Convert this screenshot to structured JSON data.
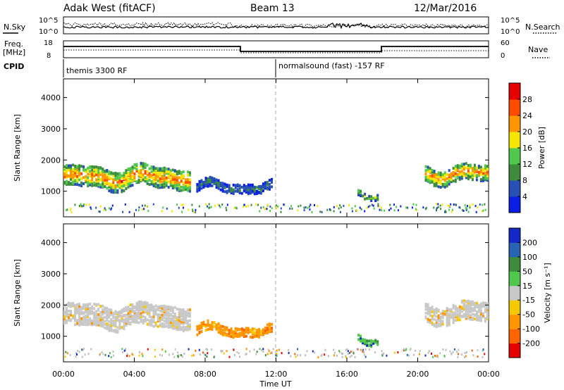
{
  "header": {
    "radar": "Adak West (fitACF)",
    "beam": "Beam 13",
    "date": "12/Mar/2016"
  },
  "summary": {
    "nsky_label": "N.Sky",
    "nsearch_label": "N.Search",
    "noise_ticks": [
      "10^5",
      "10^0"
    ],
    "freq_label_top": "Freq.",
    "freq_label_unit": "[MHz]",
    "freq_ticks": [
      "18",
      "8"
    ],
    "nave_label": "Nave",
    "nave_ticks": [
      "60",
      "0"
    ],
    "cpid_label": "CPID",
    "cpid_segments": [
      "themis 3300 RF",
      "normalsound (fast) -157 RF"
    ]
  },
  "colors": {
    "power": [
      "#0a1ee6",
      "#2850b4",
      "#3c8c3c",
      "#50c84b",
      "#f5e600",
      "#ff9600",
      "#ff4b00",
      "#e60000"
    ],
    "velocity": [
      "#e60000",
      "#ff6400",
      "#ff9600",
      "#f5c800",
      "#c8c8c8",
      "#50c84b",
      "#3c8c3c",
      "#2864b4",
      "#1428c8"
    ],
    "ground": "#a0a0a0",
    "ground_scatter": "#bebebe"
  },
  "chart_data": [
    {
      "type": "heatmap",
      "name": "power",
      "ylabel": "Slant Range [km]",
      "ylim": [
        180,
        4600
      ],
      "yticks": [
        1000,
        2000,
        3000,
        4000
      ],
      "xlim": [
        0,
        24
      ],
      "colorbar_label": "Power [dB]",
      "colorbar_ticks": [
        "4",
        "8",
        "12",
        "16",
        "20",
        "24",
        "28"
      ],
      "scatter_bands": [
        {
          "t0": 0.0,
          "t1": 7.2,
          "center": 1500,
          "width": 650,
          "level": 22
        },
        {
          "t0": 7.5,
          "t1": 11.8,
          "center": 1200,
          "width": 300,
          "level": 8
        },
        {
          "t0": 16.6,
          "t1": 17.8,
          "center": 1000,
          "width": 200,
          "level": 14
        },
        {
          "t0": 20.4,
          "t1": 24.0,
          "center": 1600,
          "width": 500,
          "level": 22
        }
      ]
    },
    {
      "type": "heatmap",
      "name": "velocity",
      "ylabel": "Slant Range [km]",
      "ylim": [
        180,
        4600
      ],
      "yticks": [
        1000,
        2000,
        3000,
        4000
      ],
      "xlim": [
        0,
        24
      ],
      "colorbar_label": "Velocity [m s⁻¹]",
      "colorbar_ticks": [
        "200",
        "100",
        "50",
        "15",
        "-15",
        "-50",
        "-100",
        "-200"
      ],
      "scatter_bands": [
        {
          "t0": 0.0,
          "t1": 7.2,
          "center": 1700,
          "width": 700,
          "level": 0
        },
        {
          "t0": 7.5,
          "t1": 11.8,
          "center": 1250,
          "width": 300,
          "level": -60
        },
        {
          "t0": 16.6,
          "t1": 17.8,
          "center": 1000,
          "width": 200,
          "level": 80
        },
        {
          "t0": 20.4,
          "t1": 24.0,
          "center": 1800,
          "width": 600,
          "level": 0
        }
      ]
    }
  ],
  "xaxis": {
    "label": "Time UT",
    "ticks": [
      "00:00",
      "04:00",
      "08:00",
      "12:00",
      "16:00",
      "20:00",
      "00:00"
    ]
  }
}
